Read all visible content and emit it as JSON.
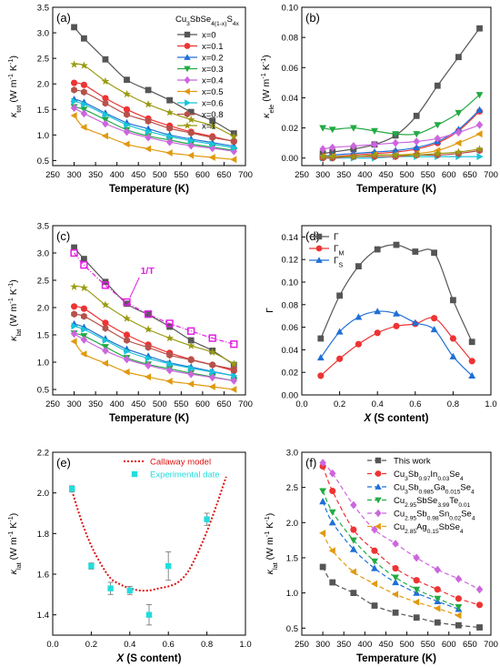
{
  "colors": {
    "x0": "#555555",
    "x01": "#ee3333",
    "x02": "#1f6fd6",
    "x03": "#22aa44",
    "x04": "#cc66dd",
    "x05": "#e09a10",
    "x06": "#18c4d8",
    "x08": "#b5524a",
    "x1": "#9a9a12",
    "magenta": "#e020e0",
    "cyan": "#22dddd"
  },
  "chart_data": [
    {
      "panel": "(a)",
      "type": "line",
      "xlabel": "Temperature (K)",
      "ylabel": "κtot (W m⁻¹ K⁻¹)",
      "xlim": [
        250,
        700
      ],
      "ylim": [
        0.4,
        3.5
      ],
      "xticks": [
        250,
        300,
        350,
        400,
        450,
        500,
        550,
        600,
        650,
        700
      ],
      "yticks": [
        0.5,
        1.0,
        1.5,
        2.0,
        2.5,
        3.0,
        3.5
      ],
      "legend_title": "Cu3SbSe4(1-x)S4x",
      "legend_loc": "top-right",
      "x": [
        300,
        323,
        373,
        423,
        473,
        523,
        573,
        623,
        673
      ],
      "series": [
        {
          "name": "x=0",
          "marker": "square",
          "color": "#555555",
          "values": [
            3.11,
            2.89,
            2.48,
            2.08,
            1.88,
            1.68,
            1.45,
            1.28,
            1.03
          ]
        },
        {
          "name": "x=0.1",
          "marker": "circle",
          "color": "#ee3333",
          "values": [
            2.02,
            1.98,
            1.72,
            1.5,
            1.32,
            1.18,
            1.06,
            0.97,
            0.87
          ]
        },
        {
          "name": "x=0.2",
          "marker": "triangle-up",
          "color": "#1f6fd6",
          "values": [
            1.7,
            1.64,
            1.43,
            1.24,
            1.12,
            1.0,
            0.92,
            0.85,
            0.78
          ]
        },
        {
          "name": "x=0.3",
          "marker": "triangle-down",
          "color": "#22aa44",
          "values": [
            1.55,
            1.5,
            1.3,
            1.1,
            0.98,
            0.9,
            0.82,
            0.76,
            0.7
          ]
        },
        {
          "name": "x=0.4",
          "marker": "diamond",
          "color": "#cc66dd",
          "values": [
            1.53,
            1.42,
            1.22,
            1.06,
            0.95,
            0.86,
            0.79,
            0.74,
            0.68
          ]
        },
        {
          "name": "x=0.5",
          "marker": "triangle-left",
          "color": "#e09a10",
          "values": [
            1.38,
            1.15,
            0.98,
            0.82,
            0.73,
            0.65,
            0.6,
            0.56,
            0.52
          ]
        },
        {
          "name": "x=0.6",
          "marker": "triangle-right",
          "color": "#18c4d8",
          "values": [
            1.66,
            1.6,
            1.4,
            1.2,
            1.07,
            0.97,
            0.89,
            0.82,
            0.75
          ]
        },
        {
          "name": "x=0.8",
          "marker": "hexagon",
          "color": "#b5524a",
          "values": [
            1.88,
            1.84,
            1.62,
            1.4,
            1.27,
            1.13,
            1.04,
            0.95,
            0.88
          ]
        },
        {
          "name": "x=1",
          "marker": "star",
          "color": "#9a9a12",
          "values": [
            2.38,
            2.36,
            2.05,
            1.8,
            1.6,
            1.44,
            1.3,
            1.18,
            0.97
          ]
        }
      ]
    },
    {
      "panel": "(b)",
      "type": "line",
      "xlabel": "Temperature (K)",
      "ylabel": "κele (W m⁻¹ K⁻¹)",
      "xlim": [
        250,
        700
      ],
      "ylim": [
        -0.005,
        0.1
      ],
      "xticks": [
        250,
        300,
        350,
        400,
        450,
        500,
        550,
        600,
        650,
        700
      ],
      "yticks": [
        0.0,
        0.02,
        0.04,
        0.06,
        0.08,
        0.1
      ],
      "x": [
        300,
        323,
        373,
        423,
        473,
        523,
        573,
        623,
        673
      ],
      "series": [
        {
          "marker": "square",
          "color": "#555555",
          "values": [
            0.003,
            0.004,
            0.006,
            0.009,
            0.015,
            0.028,
            0.048,
            0.067,
            0.086
          ]
        },
        {
          "marker": "circle",
          "color": "#ee3333",
          "values": [
            0.001,
            0.001,
            0.002,
            0.003,
            0.004,
            0.006,
            0.01,
            0.018,
            0.031
          ]
        },
        {
          "marker": "triangle-up",
          "color": "#1f6fd6",
          "values": [
            0.001,
            0.002,
            0.003,
            0.004,
            0.005,
            0.007,
            0.011,
            0.019,
            0.032
          ]
        },
        {
          "marker": "triangle-down",
          "color": "#22aa44",
          "values": [
            0.02,
            0.019,
            0.02,
            0.018,
            0.016,
            0.016,
            0.022,
            0.03,
            0.042
          ]
        },
        {
          "marker": "diamond",
          "color": "#cc66dd",
          "values": [
            0.006,
            0.007,
            0.008,
            0.009,
            0.01,
            0.011,
            0.013,
            0.017,
            0.022
          ]
        },
        {
          "marker": "triangle-left",
          "color": "#e09a10",
          "values": [
            0.001,
            0.001,
            0.001,
            0.002,
            0.002,
            0.003,
            0.005,
            0.01,
            0.016
          ]
        },
        {
          "marker": "triangle-right",
          "color": "#18c4d8",
          "values": [
            0.0,
            0.0,
            0.0,
            0.0,
            0.001,
            0.001,
            0.001,
            0.001,
            0.001
          ]
        },
        {
          "marker": "hexagon",
          "color": "#b5524a",
          "values": [
            0.0,
            0.0,
            0.001,
            0.001,
            0.001,
            0.002,
            0.002,
            0.003,
            0.005
          ]
        },
        {
          "marker": "star",
          "color": "#9a9a12",
          "values": [
            0.001,
            0.001,
            0.001,
            0.002,
            0.002,
            0.002,
            0.003,
            0.004,
            0.006
          ]
        }
      ]
    },
    {
      "panel": "(c)",
      "type": "line",
      "xlabel": "Temperature (K)",
      "ylabel": "κlat (W m⁻¹ K⁻¹)",
      "xlim": [
        250,
        700
      ],
      "ylim": [
        0.4,
        3.5
      ],
      "xticks": [
        250,
        300,
        350,
        400,
        450,
        500,
        550,
        600,
        650,
        700
      ],
      "yticks": [
        0.5,
        1.0,
        1.5,
        2.0,
        2.5,
        3.0,
        3.5
      ],
      "annotation": "1/T",
      "x": [
        300,
        323,
        373,
        423,
        473,
        523,
        573,
        623,
        673
      ],
      "series": [
        {
          "marker": "square",
          "color": "#555555",
          "values": [
            3.1,
            2.89,
            2.47,
            2.07,
            1.87,
            1.65,
            1.4,
            1.21,
            0.95
          ]
        },
        {
          "marker": "circle",
          "color": "#ee3333",
          "values": [
            2.02,
            1.98,
            1.72,
            1.5,
            1.32,
            1.17,
            1.05,
            0.95,
            0.84
          ]
        },
        {
          "marker": "triangle-up",
          "color": "#1f6fd6",
          "values": [
            1.7,
            1.64,
            1.43,
            1.24,
            1.11,
            0.99,
            0.91,
            0.83,
            0.75
          ]
        },
        {
          "marker": "triangle-down",
          "color": "#22aa44",
          "values": [
            1.53,
            1.48,
            1.28,
            1.08,
            0.96,
            0.88,
            0.8,
            0.73,
            0.66
          ]
        },
        {
          "marker": "diamond",
          "color": "#cc66dd",
          "values": [
            1.52,
            1.41,
            1.21,
            1.05,
            0.94,
            0.85,
            0.78,
            0.72,
            0.66
          ]
        },
        {
          "marker": "triangle-left",
          "color": "#e09a10",
          "values": [
            1.38,
            1.15,
            0.98,
            0.82,
            0.73,
            0.65,
            0.6,
            0.55,
            0.5
          ]
        },
        {
          "marker": "triangle-right",
          "color": "#18c4d8",
          "values": [
            1.66,
            1.6,
            1.4,
            1.2,
            1.07,
            0.97,
            0.89,
            0.82,
            0.75
          ]
        },
        {
          "marker": "hexagon",
          "color": "#b5524a",
          "values": [
            1.88,
            1.84,
            1.62,
            1.4,
            1.27,
            1.13,
            1.04,
            0.95,
            0.87
          ]
        },
        {
          "marker": "star",
          "color": "#9a9a12",
          "values": [
            2.38,
            2.36,
            2.05,
            1.8,
            1.6,
            1.44,
            1.3,
            1.18,
            0.97
          ]
        },
        {
          "name": "1/T",
          "marker": "square-open",
          "color": "#e020e0",
          "dashed": true,
          "values": [
            3.0,
            2.78,
            2.41,
            2.1,
            1.88,
            1.71,
            1.57,
            1.44,
            1.33
          ]
        }
      ]
    },
    {
      "panel": "(d)",
      "type": "line",
      "xlabel": "X (S content)",
      "ylabel": "Γ",
      "xlim": [
        0.0,
        1.0
      ],
      "ylim": [
        0.0,
        0.15
      ],
      "xticks": [
        0.0,
        0.2,
        0.4,
        0.6,
        0.8,
        1.0
      ],
      "yticks": [
        0.0,
        0.02,
        0.04,
        0.06,
        0.08,
        0.1,
        0.12,
        0.14
      ],
      "legend_loc": "top-left",
      "x": [
        0.1,
        0.2,
        0.3,
        0.4,
        0.5,
        0.6,
        0.7,
        0.8,
        0.9
      ],
      "series": [
        {
          "name": "Γ",
          "marker": "square",
          "color": "#555555",
          "values": [
            0.05,
            0.088,
            0.114,
            0.129,
            0.133,
            0.127,
            0.126,
            0.084,
            0.047
          ]
        },
        {
          "name": "ΓM",
          "marker": "circle",
          "color": "#ee3333",
          "values": [
            0.017,
            0.032,
            0.045,
            0.055,
            0.061,
            0.063,
            0.068,
            0.05,
            0.03
          ]
        },
        {
          "name": "ΓS",
          "marker": "triangle-up",
          "color": "#1f6fd6",
          "values": [
            0.033,
            0.056,
            0.069,
            0.074,
            0.072,
            0.064,
            0.058,
            0.034,
            0.017
          ]
        }
      ]
    },
    {
      "panel": "(e)",
      "type": "scatter",
      "xlabel": "X (S content)",
      "ylabel": "κlat (W m⁻¹ K⁻¹)",
      "xlim": [
        0.0,
        1.0
      ],
      "ylim": [
        1.3,
        2.2
      ],
      "xticks": [
        0.0,
        0.2,
        0.4,
        0.6,
        0.8,
        1.0
      ],
      "yticks": [
        1.4,
        1.6,
        1.8,
        2.0,
        2.2
      ],
      "legend_loc": "top-center",
      "model": {
        "name": "Callaway model",
        "color": "#dd1111",
        "x": [
          0.1,
          0.15,
          0.2,
          0.25,
          0.3,
          0.35,
          0.4,
          0.45,
          0.5,
          0.55,
          0.6,
          0.65,
          0.7,
          0.75,
          0.8,
          0.85,
          0.9
        ],
        "values": [
          2.01,
          1.86,
          1.74,
          1.65,
          1.58,
          1.55,
          1.53,
          1.52,
          1.52,
          1.53,
          1.54,
          1.56,
          1.61,
          1.7,
          1.81,
          1.94,
          2.08
        ]
      },
      "experiment": {
        "name": "Experimental date",
        "color": "#22dddd",
        "x": [
          0.1,
          0.2,
          0.3,
          0.4,
          0.5,
          0.6,
          0.8
        ],
        "values": [
          2.02,
          1.64,
          1.53,
          1.52,
          1.4,
          1.64,
          1.87
        ],
        "errors": [
          0.015,
          0.015,
          0.03,
          0.02,
          0.05,
          0.07,
          0.03
        ]
      }
    },
    {
      "panel": "(f)",
      "type": "line",
      "xlabel": "Temperature (K)",
      "ylabel": "κlat (W m⁻¹ K⁻¹)",
      "xlim": [
        250,
        700
      ],
      "ylim": [
        0.4,
        3.0
      ],
      "xticks": [
        250,
        300,
        350,
        400,
        450,
        500,
        550,
        600,
        650,
        700
      ],
      "yticks": [
        0.5,
        1.0,
        1.5,
        2.0,
        2.5,
        3.0
      ],
      "legend_loc": "top-right",
      "series": [
        {
          "name": "This work",
          "marker": "square",
          "color": "#555555",
          "x": [
            300,
            323,
            373,
            423,
            473,
            523,
            573,
            623,
            673
          ],
          "values": [
            1.37,
            1.15,
            1.0,
            0.82,
            0.72,
            0.65,
            0.58,
            0.54,
            0.51
          ]
        },
        {
          "name": "Cu3Sb0.97In0.03Se4",
          "marker": "circle",
          "color": "#ee3333",
          "x": [
            300,
            323,
            373,
            423,
            473,
            523,
            573,
            623,
            673
          ],
          "values": [
            2.8,
            2.45,
            1.9,
            1.6,
            1.35,
            1.18,
            1.05,
            0.92,
            0.83
          ]
        },
        {
          "name": "Cu3Sb0.985Ga0.015Se4",
          "marker": "triangle-up",
          "color": "#1f6fd6",
          "x": [
            300,
            323,
            373,
            423,
            473,
            523,
            573,
            623
          ],
          "values": [
            2.3,
            2.0,
            1.62,
            1.35,
            1.15,
            1.0,
            0.88,
            0.77
          ]
        },
        {
          "name": "Cu2.95SbSe3.99Te0.01",
          "marker": "triangle-down",
          "color": "#22aa44",
          "x": [
            300,
            323,
            373,
            423,
            473,
            523,
            573,
            623
          ],
          "values": [
            2.45,
            2.15,
            1.75,
            1.45,
            1.22,
            1.05,
            0.92,
            0.8
          ]
        },
        {
          "name": "Cu2.95Sb0.98Sn0.02Se4",
          "marker": "diamond",
          "color": "#cc66dd",
          "x": [
            300,
            323,
            373,
            423,
            473,
            523,
            573,
            623,
            673
          ],
          "values": [
            2.85,
            2.7,
            2.25,
            1.9,
            1.7,
            1.5,
            1.33,
            1.2,
            1.05
          ]
        },
        {
          "name": "Cu2.85Ag0.15SbSe4",
          "marker": "triangle-left",
          "color": "#e09a10",
          "x": [
            300,
            323,
            373,
            423,
            473,
            523,
            573,
            623
          ],
          "values": [
            1.85,
            1.6,
            1.3,
            1.13,
            0.98,
            0.87,
            0.78,
            0.68
          ]
        }
      ]
    }
  ]
}
